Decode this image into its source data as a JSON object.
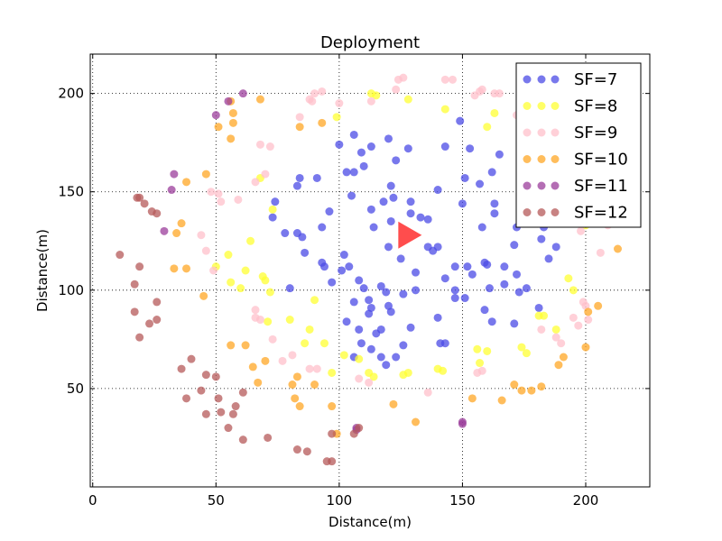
{
  "chart_data": {
    "type": "scatter",
    "title": "Deployment",
    "xlabel": "Distance(m)",
    "ylabel": "Distance(m)",
    "xlim": [
      -1,
      226
    ],
    "ylim": [
      0,
      220
    ],
    "xticks": [
      0,
      50,
      100,
      150,
      200
    ],
    "yticks": [
      50,
      100,
      150,
      200
    ],
    "grid": true,
    "legend_position": "top-right",
    "gateway": {
      "x": 128,
      "y": 128,
      "color": "#ff4d4d"
    },
    "series": [
      {
        "name": "SF=7",
        "color": "#4b4be6",
        "points": [
          [
            117,
            102
          ],
          [
            126,
            98
          ],
          [
            113,
            91
          ],
          [
            120,
            122
          ],
          [
            102,
            118
          ],
          [
            114,
            132
          ],
          [
            129,
            139
          ],
          [
            136,
            136
          ],
          [
            121,
            135
          ],
          [
            108,
            105
          ],
          [
            97,
            104
          ],
          [
            125,
            116
          ],
          [
            131,
            109
          ],
          [
            105,
            148
          ],
          [
            91,
            157
          ],
          [
            106,
            160
          ],
          [
            96,
            140
          ],
          [
            113,
            141
          ],
          [
            83,
            129
          ],
          [
            80,
            101
          ],
          [
            86,
            119
          ],
          [
            110,
            163
          ],
          [
            93,
            132
          ],
          [
            118,
            145
          ],
          [
            103,
            160
          ],
          [
            122,
            147
          ],
          [
            109,
            170
          ],
          [
            129,
            145
          ],
          [
            140,
            151
          ],
          [
            151,
            157
          ],
          [
            140,
            122
          ],
          [
            152,
            112
          ],
          [
            147,
            112
          ],
          [
            159,
            114
          ],
          [
            167,
            103
          ],
          [
            160,
            113
          ],
          [
            172,
            108
          ],
          [
            173,
            99
          ],
          [
            159,
            90
          ],
          [
            176,
            101
          ],
          [
            181,
            91
          ],
          [
            171,
            83
          ],
          [
            147,
            96
          ],
          [
            162,
            84
          ],
          [
            141,
            73
          ],
          [
            140,
            86
          ],
          [
            121,
            89
          ],
          [
            120,
            92
          ],
          [
            129,
            81
          ],
          [
            108,
            80
          ],
          [
            113,
            70
          ],
          [
            106,
            66
          ],
          [
            103,
            84
          ],
          [
            119,
            62
          ],
          [
            109,
            73
          ],
          [
            126,
            72
          ],
          [
            117,
            66
          ],
          [
            136,
            122
          ],
          [
            150,
            144
          ],
          [
            133,
            137
          ],
          [
            100,
            174
          ],
          [
            106,
            179
          ],
          [
            113,
            173
          ],
          [
            121,
            153
          ],
          [
            123,
            166
          ],
          [
            120,
            177
          ],
          [
            128,
            172
          ],
          [
            143,
            173
          ],
          [
            153,
            172
          ],
          [
            149,
            186
          ],
          [
            162,
            160
          ],
          [
            165,
            169
          ],
          [
            175,
            152
          ],
          [
            178,
            141
          ],
          [
            183,
            137
          ],
          [
            187,
            141
          ],
          [
            182,
            126
          ],
          [
            183,
            132
          ],
          [
            172,
            132
          ],
          [
            188,
            122
          ],
          [
            185,
            116
          ],
          [
            138,
            120
          ],
          [
            131,
            100
          ],
          [
            119,
            99
          ],
          [
            117,
            80
          ],
          [
            115,
            78
          ],
          [
            112,
            88
          ],
          [
            106,
            94
          ],
          [
            73,
            137
          ],
          [
            74,
            145
          ],
          [
            83,
            153
          ],
          [
            84,
            157
          ],
          [
            78,
            129
          ],
          [
            85,
            127
          ],
          [
            94,
            112
          ],
          [
            93,
            114
          ],
          [
            104,
            112
          ],
          [
            101,
            110
          ],
          [
            110,
            101
          ],
          [
            112,
            95
          ],
          [
            123,
            66
          ],
          [
            143,
            73
          ],
          [
            147,
            100
          ],
          [
            161,
            101
          ],
          [
            167,
            112
          ],
          [
            151,
            96
          ],
          [
            143,
            106
          ],
          [
            154,
            108
          ],
          [
            163,
            139
          ],
          [
            157,
            154
          ],
          [
            163,
            144
          ],
          [
            158,
            132
          ],
          [
            171,
            123
          ]
        ]
      },
      {
        "name": "SF=8",
        "color": "#ffff33",
        "points": [
          [
            99,
            188
          ],
          [
            113,
            200
          ],
          [
            128,
            197
          ],
          [
            143,
            192
          ],
          [
            80,
            85
          ],
          [
            94,
            73
          ],
          [
            97,
            58
          ],
          [
            102,
            67
          ],
          [
            112,
            58
          ],
          [
            108,
            65
          ],
          [
            114,
            56
          ],
          [
            126,
            57
          ],
          [
            128,
            58
          ],
          [
            140,
            60
          ],
          [
            142,
            59
          ],
          [
            156,
            70
          ],
          [
            160,
            69
          ],
          [
            157,
            63
          ],
          [
            174,
            71
          ],
          [
            176,
            68
          ],
          [
            181,
            87
          ],
          [
            183,
            87
          ],
          [
            188,
            80
          ],
          [
            193,
            106
          ],
          [
            195,
            100
          ],
          [
            200,
            133
          ],
          [
            184,
            186
          ],
          [
            163,
            190
          ],
          [
            160,
            183
          ],
          [
            115,
            199
          ],
          [
            73,
            141
          ],
          [
            68,
            157
          ],
          [
            69,
            107
          ],
          [
            86,
            73
          ],
          [
            71,
            84
          ],
          [
            90,
            95
          ],
          [
            88,
            80
          ],
          [
            60,
            101
          ],
          [
            62,
            110
          ],
          [
            55,
            118
          ],
          [
            50,
            112
          ],
          [
            56,
            104
          ],
          [
            64,
            125
          ],
          [
            70,
            105
          ],
          [
            72,
            99
          ]
        ]
      },
      {
        "name": "SF=9",
        "color": "#ffc0cb",
        "points": [
          [
            88,
            197
          ],
          [
            90,
            200
          ],
          [
            93,
            201
          ],
          [
            123,
            202
          ],
          [
            124,
            207
          ],
          [
            126,
            208
          ],
          [
            143,
            207
          ],
          [
            146,
            207
          ],
          [
            155,
            199
          ],
          [
            157,
            201
          ],
          [
            158,
            202
          ],
          [
            163,
            200
          ],
          [
            165,
            200
          ],
          [
            172,
            189
          ],
          [
            175,
            189
          ],
          [
            195,
            86
          ],
          [
            197,
            82
          ],
          [
            200,
            92
          ],
          [
            201,
            85
          ],
          [
            199,
            94
          ],
          [
            206,
            119
          ],
          [
            209,
            133
          ],
          [
            190,
            73
          ],
          [
            188,
            76
          ],
          [
            182,
            80
          ],
          [
            156,
            58
          ],
          [
            158,
            59
          ],
          [
            136,
            48
          ],
          [
            108,
            55
          ],
          [
            112,
            53
          ],
          [
            88,
            60
          ],
          [
            91,
            60
          ],
          [
            81,
            67
          ],
          [
            77,
            64
          ],
          [
            73,
            75
          ],
          [
            68,
            85
          ],
          [
            66,
            90
          ],
          [
            66,
            86
          ],
          [
            49,
            110
          ],
          [
            46,
            120
          ],
          [
            44,
            128
          ],
          [
            48,
            150
          ],
          [
            51,
            149
          ],
          [
            52,
            145
          ],
          [
            59,
            146
          ],
          [
            68,
            174
          ],
          [
            72,
            173
          ],
          [
            66,
            155
          ],
          [
            70,
            159
          ],
          [
            84,
            188
          ],
          [
            89,
            196
          ],
          [
            100,
            195
          ],
          [
            113,
            196
          ],
          [
            198,
            130
          ],
          [
            193,
            140
          ],
          [
            185,
            161
          ],
          [
            188,
            170
          ],
          [
            193,
            170
          ],
          [
            196,
            155
          ],
          [
            201,
            146
          ]
        ]
      },
      {
        "name": "SF=10",
        "color": "#ffa726",
        "points": [
          [
            56,
            196
          ],
          [
            57,
            190
          ],
          [
            57,
            185
          ],
          [
            51,
            183
          ],
          [
            56,
            177
          ],
          [
            68,
            197
          ],
          [
            46,
            159
          ],
          [
            38,
            155
          ],
          [
            36,
            134
          ],
          [
            34,
            129
          ],
          [
            33,
            111
          ],
          [
            38,
            111
          ],
          [
            45,
            97
          ],
          [
            56,
            72
          ],
          [
            62,
            72
          ],
          [
            65,
            61
          ],
          [
            70,
            64
          ],
          [
            67,
            53
          ],
          [
            81,
            52
          ],
          [
            83,
            56
          ],
          [
            82,
            45
          ],
          [
            84,
            41
          ],
          [
            90,
            52
          ],
          [
            97,
            41
          ],
          [
            99,
            27
          ],
          [
            122,
            42
          ],
          [
            131,
            33
          ],
          [
            154,
            45
          ],
          [
            166,
            44
          ],
          [
            171,
            52
          ],
          [
            174,
            49
          ],
          [
            178,
            49
          ],
          [
            182,
            51
          ],
          [
            189,
            62
          ],
          [
            191,
            66
          ],
          [
            200,
            71
          ],
          [
            201,
            89
          ],
          [
            205,
            92
          ],
          [
            213,
            121
          ],
          [
            84,
            183
          ],
          [
            93,
            185
          ]
        ]
      },
      {
        "name": "SF=11",
        "color": "#9b3d9b",
        "points": [
          [
            61,
            200
          ],
          [
            55,
            196
          ],
          [
            50,
            189
          ],
          [
            33,
            159
          ],
          [
            32,
            151
          ],
          [
            29,
            130
          ],
          [
            107,
            30
          ],
          [
            107,
            29
          ],
          [
            150,
            32
          ],
          [
            150,
            33
          ]
        ]
      },
      {
        "name": "SF=12",
        "color": "#b55a5a",
        "points": [
          [
            18,
            147
          ],
          [
            19,
            147
          ],
          [
            21,
            144
          ],
          [
            24,
            140
          ],
          [
            26,
            139
          ],
          [
            11,
            118
          ],
          [
            19,
            112
          ],
          [
            17,
            103
          ],
          [
            26,
            94
          ],
          [
            17,
            89
          ],
          [
            26,
            85
          ],
          [
            23,
            83
          ],
          [
            19,
            76
          ],
          [
            36,
            60
          ],
          [
            40,
            65
          ],
          [
            46,
            57
          ],
          [
            50,
            56
          ],
          [
            44,
            49
          ],
          [
            38,
            45
          ],
          [
            51,
            45
          ],
          [
            46,
            37
          ],
          [
            52,
            38
          ],
          [
            58,
            41
          ],
          [
            61,
            48
          ],
          [
            55,
            30
          ],
          [
            57,
            37
          ],
          [
            61,
            24
          ],
          [
            71,
            25
          ],
          [
            83,
            19
          ],
          [
            87,
            18
          ],
          [
            95,
            13
          ],
          [
            97,
            13
          ],
          [
            97,
            27
          ],
          [
            106,
            27
          ],
          [
            108,
            30
          ]
        ]
      }
    ]
  }
}
